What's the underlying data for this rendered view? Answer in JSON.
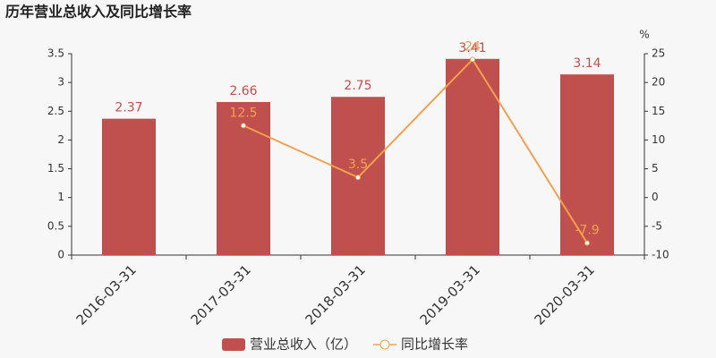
{
  "chart_data": {
    "type": "bar",
    "title": "历年营业总收入及同比增长率",
    "categories": [
      "2016-03-31",
      "2017-03-31",
      "2018-03-31",
      "2019-03-31",
      "2020-03-31"
    ],
    "series": [
      {
        "name": "营业总收入（亿）",
        "type": "bar",
        "color": "#c0504d",
        "values": [
          2.37,
          2.66,
          2.75,
          3.41,
          3.14
        ]
      },
      {
        "name": "同比增长率",
        "type": "line",
        "axis": "y2",
        "color": "#f5a04e",
        "values": [
          null,
          12.5,
          3.5,
          24,
          -7.9
        ]
      }
    ],
    "ylim": [
      0,
      3.5
    ],
    "yticks": [
      0,
      0.5,
      1,
      1.5,
      2,
      2.5,
      3,
      3.5
    ],
    "y2lim": [
      -10,
      25
    ],
    "y2ticks": [
      -10,
      -5,
      0,
      5,
      10,
      15,
      20,
      25
    ],
    "y2_label": "%",
    "grid": false,
    "legend": "bottom"
  }
}
